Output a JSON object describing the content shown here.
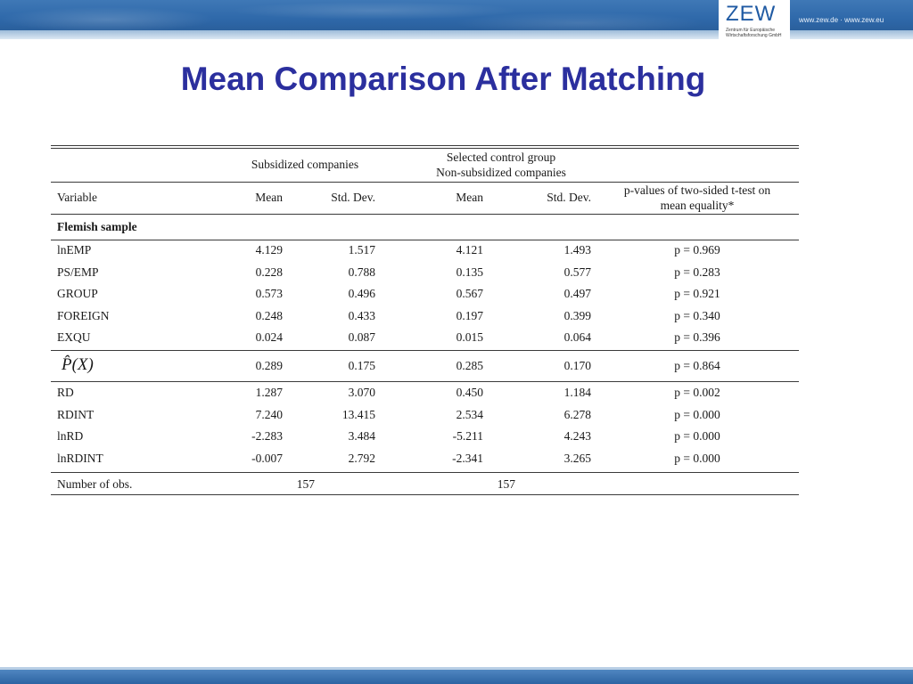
{
  "header": {
    "logo_word": "ZEW",
    "logo_subtitle": "Zentrum für Europäische Wirtschaftsforschung GmbH",
    "website": "www.zew.de · www.zew.eu"
  },
  "slide": {
    "title": "Mean Comparison After Matching"
  },
  "table": {
    "group_head_subsidized": "Subsidized companies",
    "group_head_control_1": "Selected control group",
    "group_head_control_2": "Non-subsidized companies",
    "col_variable": "Variable",
    "col_mean_1": "Mean",
    "col_sd_1": "Std. Dev.",
    "col_mean_2": "Mean",
    "col_sd_2": "Std. Dev.",
    "col_pvalue_1": "p-values of two-sided t-test on",
    "col_pvalue_2": "mean equality*",
    "section": "Flemish sample",
    "rows": [
      {
        "var": "lnEMP",
        "m1": "4.129",
        "s1": "1.517",
        "m2": "4.121",
        "s2": "1.493",
        "p": "p = 0.969"
      },
      {
        "var": "PS/EMP",
        "m1": "0.228",
        "s1": "0.788",
        "m2": "0.135",
        "s2": "0.577",
        "p": "p = 0.283"
      },
      {
        "var": "GROUP",
        "m1": "0.573",
        "s1": "0.496",
        "m2": "0.567",
        "s2": "0.497",
        "p": "p = 0.921"
      },
      {
        "var": "FOREIGN",
        "m1": "0.248",
        "s1": "0.433",
        "m2": "0.197",
        "s2": "0.399",
        "p": "p = 0.340"
      },
      {
        "var": "EXQU",
        "m1": "0.024",
        "s1": "0.087",
        "m2": "0.015",
        "s2": "0.064",
        "p": "p = 0.396"
      }
    ],
    "pscore_row": {
      "var": "P̂(X)",
      "m1": "0.289",
      "s1": "0.175",
      "m2": "0.285",
      "s2": "0.170",
      "p": "p = 0.864"
    },
    "rows2": [
      {
        "var": "RD",
        "m1": "1.287",
        "s1": "3.070",
        "m2": "0.450",
        "s2": "1.184",
        "p": "p = 0.002"
      },
      {
        "var": "RDINT",
        "m1": "7.240",
        "s1": "13.415",
        "m2": "2.534",
        "s2": "6.278",
        "p": "p = 0.000"
      },
      {
        "var": "lnRD",
        "m1": "-2.283",
        "s1": "3.484",
        "m2": "-5.211",
        "s2": "4.243",
        "p": "p = 0.000"
      },
      {
        "var": "lnRDINT",
        "m1": "-0.007",
        "s1": "2.792",
        "m2": "-2.341",
        "s2": "3.265",
        "p": "p = 0.000"
      }
    ],
    "obs_label": "Number of obs.",
    "obs_subsidized": "157",
    "obs_control": "157"
  }
}
